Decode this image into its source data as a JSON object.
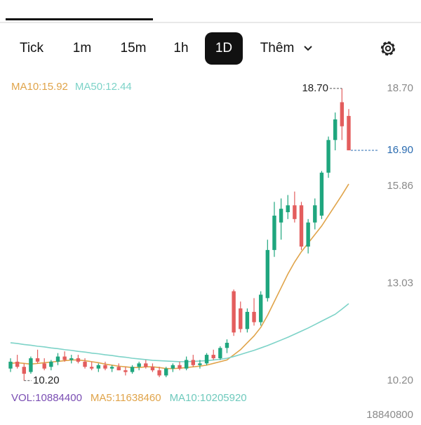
{
  "tabs": [
    "Tick",
    "1m",
    "15m",
    "1h",
    "1D",
    "Thêm"
  ],
  "active_tab": 4,
  "chart_data": {
    "type": "candlestick",
    "legend": [
      {
        "text": "MA10:15.92",
        "color": "#e0a44a"
      },
      {
        "text": "MA50:12.44",
        "color": "#7dd3c8"
      }
    ],
    "up_color": "#1fa67e",
    "down_color": "#e35d5d",
    "ylim": [
      9.93,
      19.23
    ],
    "yticks": [
      {
        "value": 10.2,
        "label": "10.20"
      },
      13.03,
      15.86,
      {
        "value": 18.7,
        "label": "18.70"
      }
    ],
    "last_price": {
      "value": 16.9,
      "label": "16.90"
    },
    "high_marker": {
      "value": 18.7,
      "label": "18.70",
      "index": 49
    },
    "low_marker": {
      "value": 10.2,
      "label": "10.20",
      "index": 2
    },
    "open": [
      10.55,
      10.75,
      10.6,
      10.45,
      10.85,
      10.7,
      10.6,
      10.75,
      10.9,
      10.8,
      10.85,
      10.75,
      10.6,
      10.55,
      10.65,
      10.55,
      10.6,
      10.5,
      10.45,
      10.6,
      10.7,
      10.6,
      10.5,
      10.35,
      10.55,
      10.65,
      10.55,
      10.8,
      10.65,
      10.7,
      10.95,
      10.85,
      11.15,
      12.8,
      12.3,
      11.7,
      12.2,
      11.9,
      12.6,
      14.0,
      14.8,
      15.1,
      15.3,
      15.3,
      14.1,
      14.8,
      15.0,
      16.25,
      17.2,
      18.3,
      17.9
    ],
    "high": [
      10.85,
      10.95,
      10.7,
      10.9,
      11.1,
      10.85,
      10.8,
      11.0,
      11.05,
      10.95,
      10.95,
      10.85,
      10.75,
      10.7,
      10.75,
      10.65,
      10.7,
      10.6,
      10.65,
      10.75,
      10.8,
      10.7,
      10.6,
      10.6,
      10.7,
      10.75,
      10.9,
      10.95,
      10.8,
      11.0,
      11.1,
      11.2,
      11.4,
      12.85,
      12.5,
      12.3,
      12.6,
      12.8,
      14.3,
      15.4,
      15.5,
      15.6,
      15.7,
      15.4,
      14.9,
      15.5,
      16.3,
      17.3,
      18.0,
      18.7,
      18.1
    ],
    "low": [
      10.45,
      10.55,
      10.2,
      10.4,
      10.7,
      10.5,
      10.5,
      10.65,
      10.75,
      10.7,
      10.7,
      10.55,
      10.5,
      10.45,
      10.5,
      10.45,
      10.5,
      10.35,
      10.4,
      10.5,
      10.55,
      10.45,
      10.3,
      10.3,
      10.45,
      10.5,
      10.5,
      10.6,
      10.55,
      10.65,
      10.8,
      10.8,
      11.0,
      11.5,
      11.6,
      11.6,
      11.8,
      11.8,
      12.5,
      13.8,
      14.3,
      14.9,
      14.8,
      14.0,
      13.9,
      14.6,
      14.9,
      16.1,
      16.9,
      17.2,
      16.9
    ],
    "close": [
      10.75,
      10.6,
      10.4,
      10.85,
      10.75,
      10.55,
      10.75,
      10.9,
      10.8,
      10.85,
      10.75,
      10.6,
      10.55,
      10.65,
      10.55,
      10.6,
      10.5,
      10.45,
      10.6,
      10.7,
      10.6,
      10.5,
      10.35,
      10.55,
      10.65,
      10.55,
      10.8,
      10.65,
      10.7,
      10.95,
      10.85,
      11.15,
      11.3,
      11.6,
      11.7,
      12.2,
      11.9,
      12.7,
      14.0,
      15.0,
      15.2,
      15.3,
      14.9,
      14.1,
      14.8,
      15.3,
      16.25,
      17.2,
      17.8,
      17.6,
      16.9
    ],
    "series": [
      {
        "name": "MA10",
        "color": "#e0a44a",
        "values": [
          10.7,
          10.72,
          10.7,
          10.68,
          10.7,
          10.72,
          10.74,
          10.76,
          10.78,
          10.8,
          10.8,
          10.78,
          10.75,
          10.72,
          10.68,
          10.65,
          10.62,
          10.6,
          10.58,
          10.58,
          10.6,
          10.6,
          10.58,
          10.55,
          10.55,
          10.56,
          10.58,
          10.6,
          10.62,
          10.65,
          10.7,
          10.75,
          10.8,
          10.95,
          11.1,
          11.3,
          11.5,
          11.75,
          12.1,
          12.5,
          12.9,
          13.3,
          13.65,
          13.95,
          14.2,
          14.45,
          14.7,
          15.0,
          15.3,
          15.6,
          15.92
        ]
      },
      {
        "name": "MA50",
        "color": "#7dd3c8",
        "values": [
          11.3,
          11.28,
          11.25,
          11.23,
          11.2,
          11.18,
          11.15,
          11.13,
          11.1,
          11.08,
          11.05,
          11.03,
          11.0,
          10.98,
          10.95,
          10.93,
          10.9,
          10.88,
          10.85,
          10.83,
          10.81,
          10.79,
          10.78,
          10.77,
          10.76,
          10.75,
          10.75,
          10.76,
          10.77,
          10.78,
          10.8,
          10.82,
          10.85,
          10.9,
          10.96,
          11.02,
          11.08,
          11.15,
          11.22,
          11.3,
          11.38,
          11.46,
          11.55,
          11.64,
          11.73,
          11.83,
          11.93,
          12.03,
          12.13,
          12.28,
          12.44
        ]
      }
    ]
  },
  "volume_pane": {
    "labels": [
      {
        "text": "VOL:10884400",
        "color": "#7a4eb3"
      },
      {
        "text": "MA5:11638460",
        "color": "#e0a44a"
      },
      {
        "text": "MA10:10205920",
        "color": "#6fcabd"
      }
    ],
    "axis_label": "18840800"
  }
}
